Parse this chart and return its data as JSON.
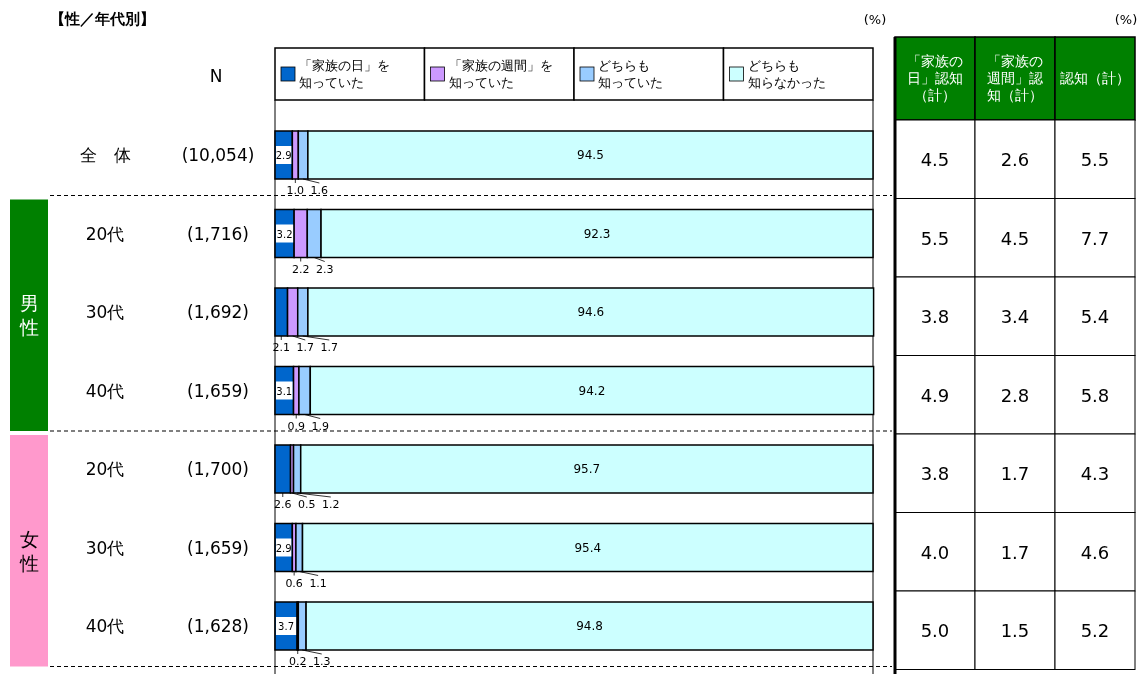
{
  "chart_data": [
    {
      "type": "bar",
      "orientation": "horizontal",
      "stacked": true,
      "title": "【性／年代別】",
      "xlabel": "(%)",
      "categories": [
        "全　体",
        "20代",
        "30代",
        "40代",
        "20代",
        "30代",
        "40代"
      ],
      "series": [
        {
          "name": "「家族の日」を知っていた",
          "color": "#0066cc",
          "values": [
            2.9,
            3.2,
            2.1,
            3.1,
            2.6,
            2.9,
            3.7
          ],
          "value_labels": [
            "2.9",
            "3.2",
            "2.1",
            "3.1",
            "2.6",
            "2.9",
            "3.7"
          ]
        },
        {
          "name": "「家族の週間」を知っていた",
          "color": "#cc99ff",
          "values": [
            1.0,
            2.2,
            1.7,
            0.9,
            0.5,
            0.6,
            0.2
          ],
          "value_labels": [
            "1.0",
            "2.2",
            "1.7",
            "0.9",
            "0.5",
            "0.6",
            "0.2"
          ]
        },
        {
          "name": "どちらも知っていた",
          "color": "#99ccff",
          "values": [
            1.6,
            2.3,
            1.7,
            1.9,
            1.2,
            1.1,
            1.3
          ],
          "value_labels": [
            "1.6",
            "2.3",
            "1.7",
            "1.9",
            "1.2",
            "1.1",
            "1.3"
          ]
        },
        {
          "name": "どちらも知らなかった",
          "color": "#ccffff",
          "values": [
            94.5,
            92.3,
            94.6,
            94.2,
            95.7,
            95.4,
            94.8
          ],
          "value_labels": [
            "94.5",
            "92.3",
            "94.6",
            "94.2",
            "95.7",
            "95.4",
            "94.8"
          ]
        }
      ],
      "xlim": [
        0,
        100
      ],
      "tick_labels": "y",
      "legend": "top",
      "annotations": [
        "N",
        "(10,054)",
        "(1,716)",
        "(1,692)",
        "(1,659)",
        "(1,700)",
        "(1,659)",
        "(1,628)",
        "男性",
        "女性"
      ]
    },
    {
      "type": "other",
      "xlabel": "(%)",
      "annotations": [
        "「家族の日」認知（計）",
        "「家族の週間」認知（計）",
        "認知（計）",
        "4.5",
        "2.6",
        "5.5",
        "5.5",
        "4.5",
        "7.7",
        "3.8",
        "3.4",
        "5.4",
        "4.9",
        "2.8",
        "5.8",
        "3.8",
        "1.7",
        "4.3",
        "4.0",
        "1.7",
        "4.6",
        "5.0",
        "1.5",
        "5.2"
      ]
    }
  ]
}
